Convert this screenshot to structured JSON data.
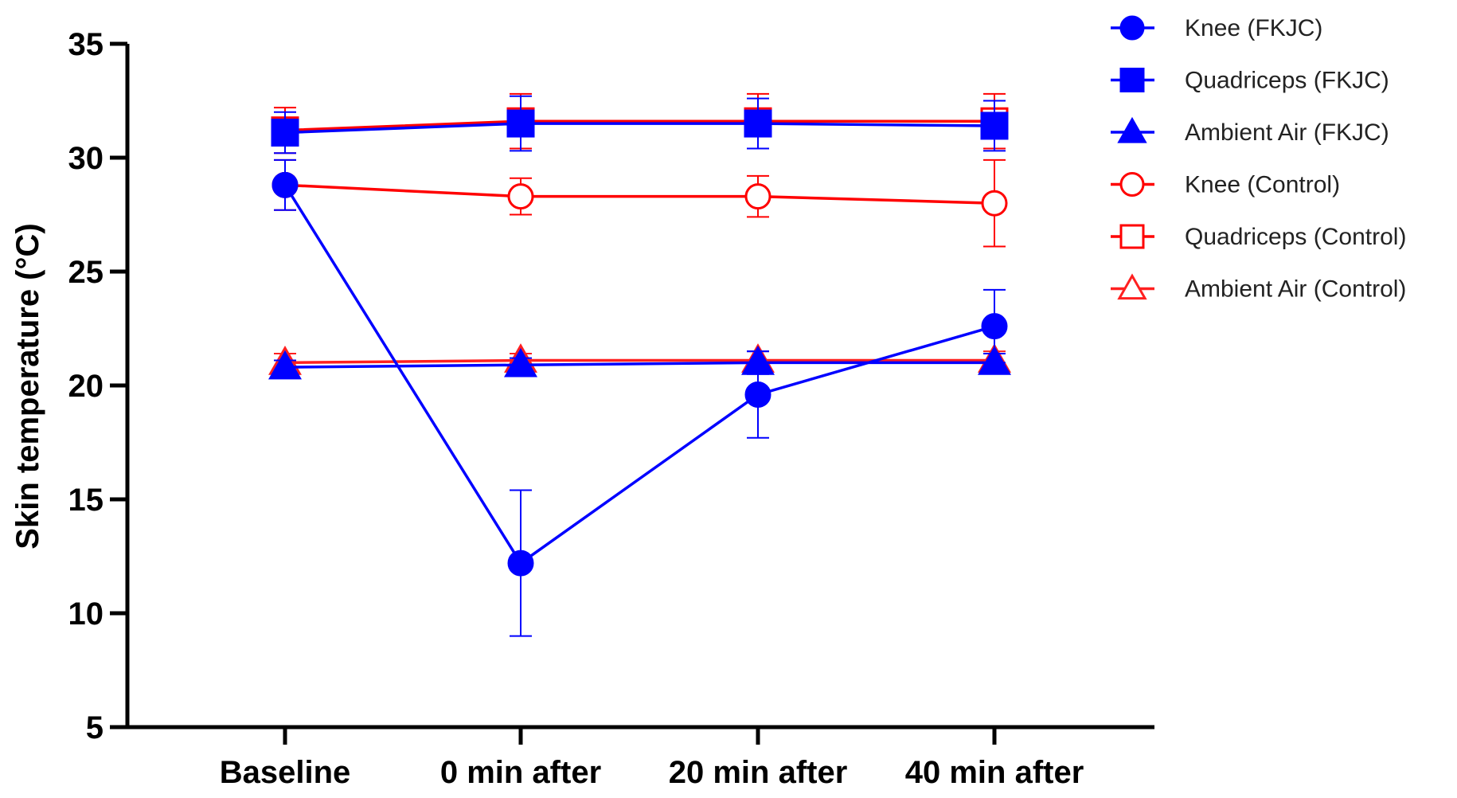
{
  "chart_data": {
    "type": "line",
    "title": "",
    "xlabel": "",
    "ylabel": "Skin temperature (°C)",
    "ylim": [
      5,
      35
    ],
    "yticks": [
      "5",
      "10",
      "15",
      "20",
      "25",
      "30",
      "35"
    ],
    "categories": [
      "Baseline",
      "0 min after",
      "20 min after",
      "40 min after"
    ],
    "legend_position": "top-right",
    "series": [
      {
        "name": "Knee (FKJC)",
        "color": "#0000ff",
        "marker": "circle",
        "filled": true,
        "values": [
          28.8,
          12.2,
          19.6,
          22.6
        ],
        "errors": [
          1.1,
          3.2,
          1.9,
          1.6
        ]
      },
      {
        "name": "Quadriceps (FKJC)",
        "color": "#0000ff",
        "marker": "square",
        "filled": true,
        "values": [
          31.1,
          31.5,
          31.5,
          31.4
        ],
        "errors": [
          0.9,
          1.2,
          1.1,
          1.1
        ]
      },
      {
        "name": "Ambient Air (FKJC)",
        "color": "#0000ff",
        "marker": "triangle",
        "filled": true,
        "values": [
          20.8,
          20.9,
          21.0,
          21.0
        ],
        "errors": [
          0.3,
          0.3,
          0.5,
          0.4
        ]
      },
      {
        "name": "Knee (Control)",
        "color": "#ff0000",
        "marker": "circle",
        "filled": false,
        "values": [
          28.8,
          28.3,
          28.3,
          28.0
        ],
        "errors": [
          1.1,
          0.8,
          0.9,
          1.9
        ]
      },
      {
        "name": "Quadriceps (Control)",
        "color": "#ff0000",
        "marker": "square",
        "filled": false,
        "values": [
          31.2,
          31.6,
          31.6,
          31.6
        ],
        "errors": [
          1.0,
          1.2,
          1.2,
          1.2
        ]
      },
      {
        "name": "Ambient Air (Control)",
        "color": "#ff2020",
        "marker": "triangle",
        "filled": false,
        "values": [
          21.0,
          21.1,
          21.1,
          21.1
        ],
        "errors": [
          0.4,
          0.3,
          0.4,
          0.4
        ]
      }
    ]
  }
}
